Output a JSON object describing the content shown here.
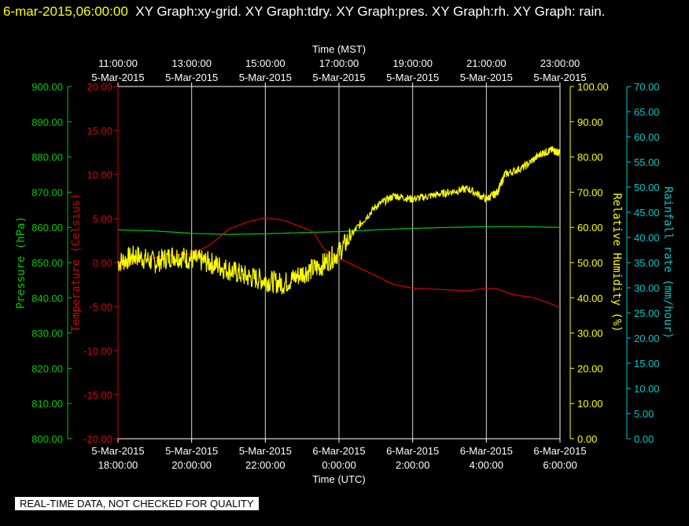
{
  "header": {
    "timestamp": "6-mar-2015,06:00:00",
    "graphs": "XY Graph:xy-grid.  XY Graph:tdry.  XY Graph:pres.  XY Graph:rh.  XY Graph: rain."
  },
  "footer": {
    "quality_note": "REAL-TIME DATA, NOT CHECKED FOR QUALITY"
  },
  "colors": {
    "pressure": "#00cc00",
    "temperature": "#dd0000",
    "humidity": "#ffff00",
    "rainfall": "#00c8c8",
    "grid": "#ffffff",
    "background": "#000000"
  },
  "chart_data": {
    "type": "line",
    "grid": true,
    "top_axis": {
      "label": "Time (MST)",
      "ticks": [
        {
          "time": "11:00:00",
          "date": "5-Mar-2015"
        },
        {
          "time": "13:00:00",
          "date": "5-Mar-2015"
        },
        {
          "time": "15:00:00",
          "date": "5-Mar-2015"
        },
        {
          "time": "17:00:00",
          "date": "5-Mar-2015"
        },
        {
          "time": "19:00:00",
          "date": "5-Mar-2015"
        },
        {
          "time": "21:00:00",
          "date": "5-Mar-2015"
        },
        {
          "time": "23:00:00",
          "date": "5-Mar-2015"
        }
      ]
    },
    "bottom_axis": {
      "label": "Time (UTC)",
      "ticks": [
        {
          "date": "5-Mar-2015",
          "time": "18:00:00"
        },
        {
          "date": "5-Mar-2015",
          "time": "20:00:00"
        },
        {
          "date": "5-Mar-2015",
          "time": "22:00:00"
        },
        {
          "date": "6-Mar-2015",
          "time": "0:00:00"
        },
        {
          "date": "6-Mar-2015",
          "time": "2:00:00"
        },
        {
          "date": "6-Mar-2015",
          "time": "4:00:00"
        },
        {
          "date": "6-Mar-2015",
          "time": "6:00:00"
        }
      ]
    },
    "x_utc_hours": [
      18,
      20,
      22,
      24,
      26,
      28,
      30
    ],
    "xlim": [
      18,
      30
    ],
    "axes": {
      "pressure": {
        "label": "Pressure (hPa)",
        "ylim": [
          800,
          900
        ],
        "ticks": [
          "900.00",
          "890.00",
          "880.00",
          "870.00",
          "860.00",
          "850.00",
          "840.00",
          "830.00",
          "820.00",
          "810.00",
          "800.00"
        ]
      },
      "temperature": {
        "label": "Temperature (Celsius)",
        "ylim": [
          -20,
          20
        ],
        "ticks": [
          "20.00",
          "15.00",
          "10.00",
          "5.00",
          "0.00",
          "-5.00",
          "-10.00",
          "-15.00",
          "-20.00"
        ]
      },
      "humidity": {
        "label": "Relative Humidity (%)",
        "ylim": [
          0,
          100
        ],
        "ticks": [
          "100.00",
          "90.00",
          "80.00",
          "70.00",
          "60.00",
          "50.00",
          "40.00",
          "30.00",
          "20.00",
          "10.00",
          "0.00"
        ]
      },
      "rainfall": {
        "label": "Rainfall rate (mm/hour)",
        "ylim": [
          0,
          70
        ],
        "ticks": [
          "70.00",
          "65.00",
          "60.00",
          "55.00",
          "50.00",
          "45.00",
          "40.00",
          "35.00",
          "30.00",
          "25.00",
          "20.00",
          "15.00",
          "10.00",
          "5.00",
          "0.00"
        ]
      }
    },
    "series": [
      {
        "key": "pressure",
        "points": [
          [
            18,
            859.3
          ],
          [
            19,
            859.0
          ],
          [
            20,
            858.3
          ],
          [
            21,
            858.0
          ],
          [
            22,
            858.2
          ],
          [
            23,
            858.5
          ],
          [
            24,
            858.8
          ],
          [
            25,
            859.3
          ],
          [
            26,
            859.7
          ],
          [
            27,
            860.0
          ],
          [
            28,
            860.2
          ],
          [
            29,
            860.2
          ],
          [
            30,
            860.0
          ]
        ]
      },
      {
        "key": "temperature",
        "points": [
          [
            18,
            -0.8
          ],
          [
            18.7,
            0.3
          ],
          [
            19.3,
            0.8
          ],
          [
            20,
            1.0
          ],
          [
            20.5,
            2.0
          ],
          [
            21,
            3.8
          ],
          [
            21.5,
            4.6
          ],
          [
            22,
            5.1
          ],
          [
            22.5,
            4.8
          ],
          [
            23,
            4.0
          ],
          [
            23.3,
            3.5
          ],
          [
            23.6,
            1.5
          ],
          [
            24,
            0.5
          ],
          [
            24.5,
            -0.5
          ],
          [
            25,
            -1.5
          ],
          [
            25.5,
            -2.5
          ],
          [
            26,
            -2.9
          ],
          [
            26.5,
            -3.0
          ],
          [
            27,
            -3.1
          ],
          [
            27.5,
            -3.2
          ],
          [
            28,
            -2.9
          ],
          [
            28.3,
            -3.0
          ],
          [
            28.7,
            -3.6
          ],
          [
            29.3,
            -4.0
          ],
          [
            29.7,
            -4.6
          ],
          [
            30,
            -5.1
          ]
        ]
      },
      {
        "key": "humidity",
        "points": [
          [
            18,
            50
          ],
          [
            18.5,
            52
          ],
          [
            19,
            50
          ],
          [
            19.5,
            52
          ],
          [
            20,
            51
          ],
          [
            20.5,
            50
          ],
          [
            21,
            48
          ],
          [
            21.5,
            46
          ],
          [
            22,
            45
          ],
          [
            22.5,
            44
          ],
          [
            23,
            47
          ],
          [
            23.5,
            49
          ],
          [
            24,
            53
          ],
          [
            24.5,
            60
          ],
          [
            25,
            66
          ],
          [
            25.5,
            69
          ],
          [
            26,
            68
          ],
          [
            26.5,
            69
          ],
          [
            27,
            70
          ],
          [
            27.5,
            71
          ],
          [
            28,
            68
          ],
          [
            28.3,
            70
          ],
          [
            28.5,
            75
          ],
          [
            29,
            77
          ],
          [
            29.5,
            81
          ],
          [
            29.8,
            82
          ],
          [
            30,
            81
          ]
        ]
      },
      {
        "key": "rainfall",
        "points": []
      }
    ]
  }
}
